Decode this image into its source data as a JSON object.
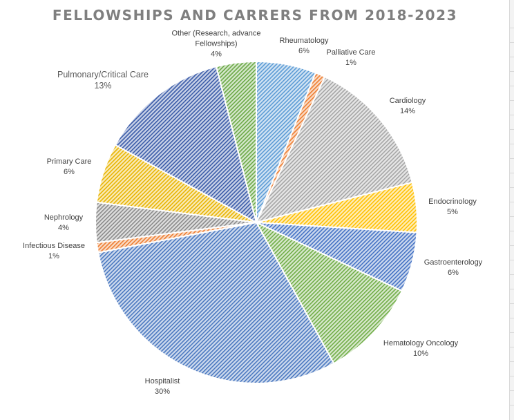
{
  "chart_data": {
    "type": "pie",
    "title": "FELLOWSHIPS AND CARRERS FROM 2018-2023",
    "start_angle_deg": 0,
    "direction": "clockwise",
    "slices": [
      {
        "name": "Rheumatology",
        "value_text": "6%",
        "value": 6,
        "color": "#5b9bd5"
      },
      {
        "name": "Palliative Care",
        "value_text": "1%",
        "value": 1,
        "color": "#ed7d31"
      },
      {
        "name": "Cardiology",
        "value_text": "14%",
        "value": 14,
        "color": "#a5a5a5"
      },
      {
        "name": "Endocrinology",
        "value_text": "5%",
        "value": 5,
        "color": "#ffc000"
      },
      {
        "name": "Gastroenterology",
        "value_text": "6%",
        "value": 6,
        "color": "#4472c4"
      },
      {
        "name": "Hematology Oncology",
        "value_text": "10%",
        "value": 10,
        "color": "#70ad47"
      },
      {
        "name": "Hospitalist",
        "value_text": "30%",
        "value": 30,
        "color": "#4a78c0"
      },
      {
        "name": "Infectious Disease",
        "value_text": "1%",
        "value": 1,
        "color": "#ed7d31"
      },
      {
        "name": "Nephrology",
        "value_text": "4%",
        "value": 4,
        "color": "#8a8a8a"
      },
      {
        "name": "Primary Care",
        "value_text": "6%",
        "value": 6,
        "color": "#e8b400"
      },
      {
        "name": "Pulmonary/Critical Care",
        "value_text": "13%",
        "value": 13,
        "color": "#3a5ba8"
      },
      {
        "name": "Other (Research, advance Fellowships)",
        "value_text": "4%",
        "value": 4,
        "color": "#6aa845"
      }
    ]
  }
}
